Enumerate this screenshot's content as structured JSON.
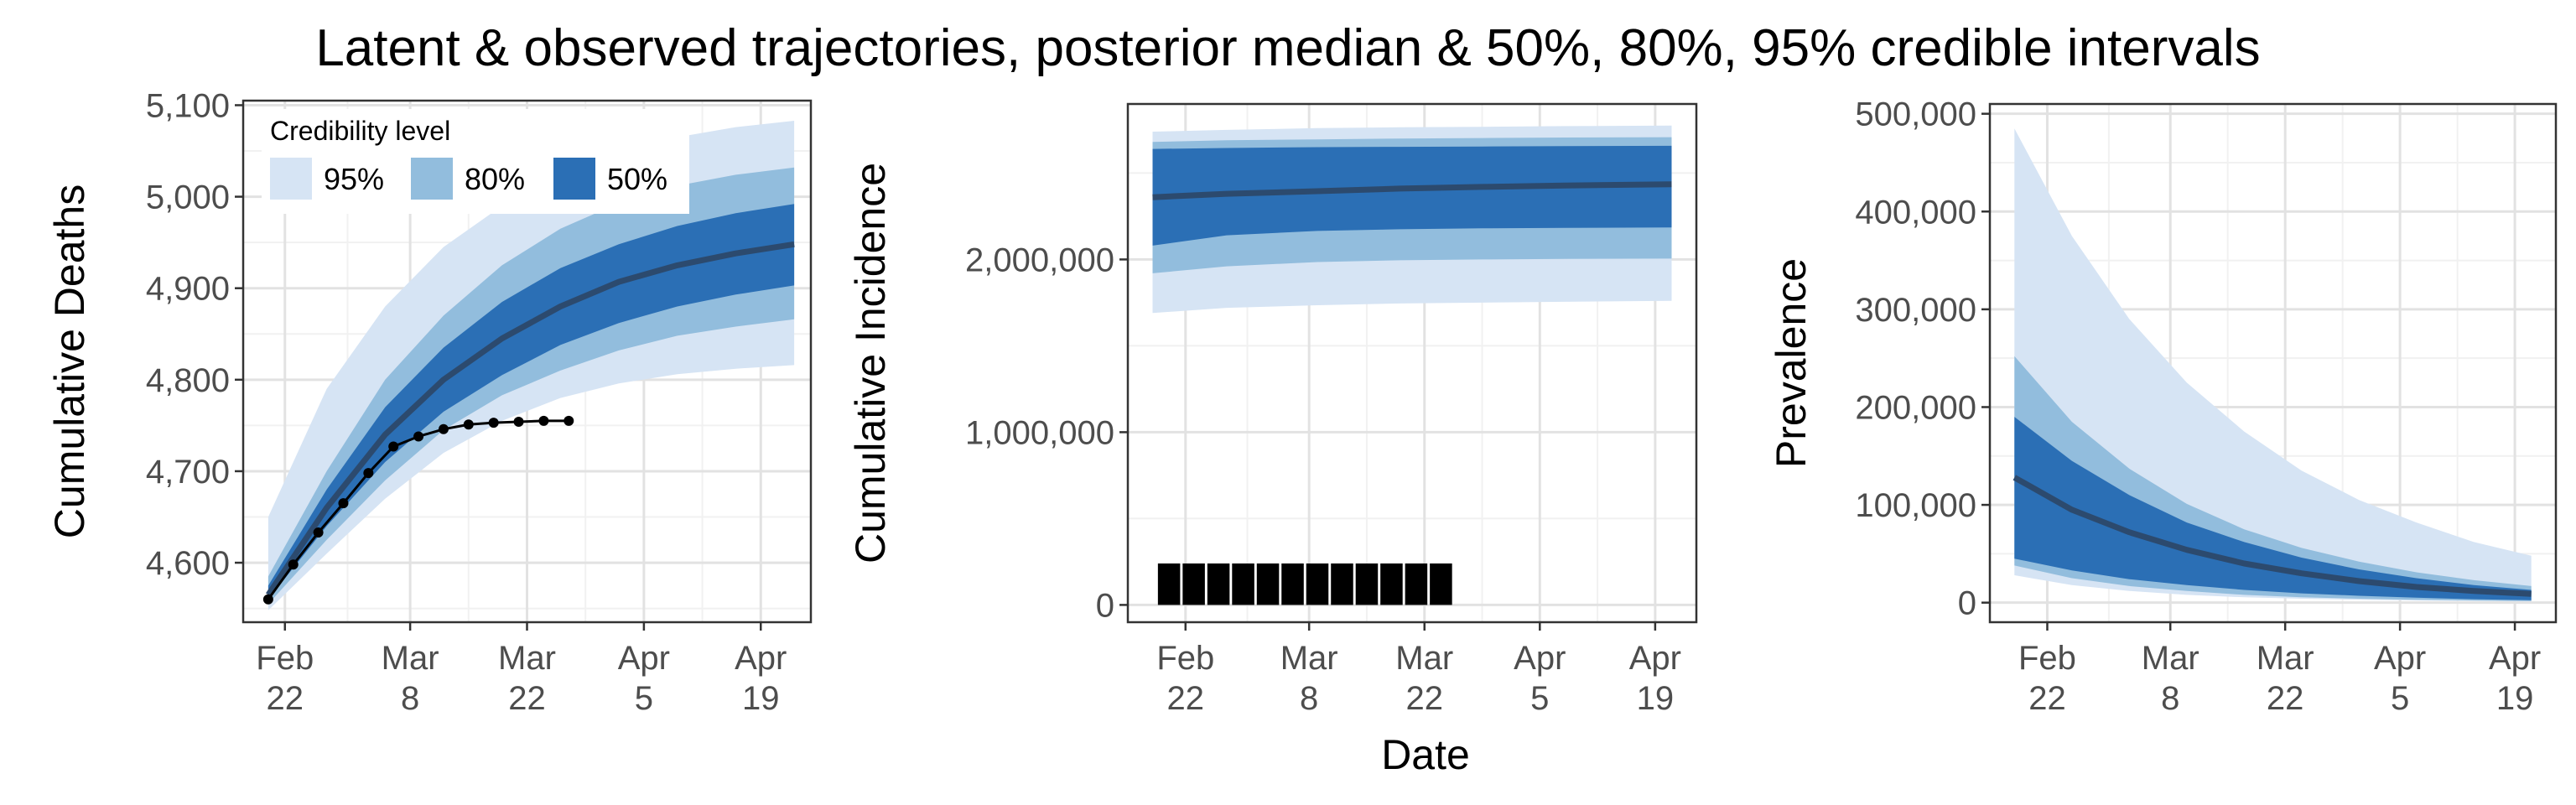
{
  "title": "Latent & observed trajectories, posterior median & 50%, 80%, 95% credible intervals",
  "x_axis_title": "Date",
  "colors": {
    "band95": "#d6e4f4",
    "band80": "#92bddd",
    "band50": "#2b6fb5",
    "median": "#2c4a6e",
    "observed": "#000000",
    "grid_major": "#e2e2e2",
    "grid_minor": "#f1f1f1",
    "panel_border": "#333333"
  },
  "legend": {
    "title": "Credibility level",
    "entries": [
      {
        "label": "95%",
        "color": "#d6e4f4"
      },
      {
        "label": "80%",
        "color": "#92bddd"
      },
      {
        "label": "50%",
        "color": "#2b6fb5"
      }
    ]
  },
  "chart_data": [
    {
      "type": "area",
      "ylabel": "Cumulative Deaths",
      "xlim": [
        "2020-02-17",
        "2020-04-25"
      ],
      "ylim": [
        4535,
        5105
      ],
      "x_ticks": [
        "2020-02-22",
        "2020-03-08",
        "2020-03-22",
        "2020-04-05",
        "2020-04-19"
      ],
      "x_tick_labels": [
        [
          "Feb",
          "22"
        ],
        [
          "Mar",
          "8"
        ],
        [
          "Mar",
          "22"
        ],
        [
          "Apr",
          "5"
        ],
        [
          "Apr",
          "19"
        ]
      ],
      "y_ticks": [
        4600,
        4700,
        4800,
        4900,
        5000,
        5100
      ],
      "y_tick_labels": [
        "4,600",
        "4,700",
        "4,800",
        "4,900",
        "5,000",
        "5,100"
      ],
      "bands": {
        "x": [
          "2020-02-20",
          "2020-02-27",
          "2020-03-05",
          "2020-03-12",
          "2020-03-19",
          "2020-03-26",
          "2020-04-02",
          "2020-04-09",
          "2020-04-16",
          "2020-04-23"
        ],
        "median": [
          4565,
          4660,
          4740,
          4800,
          4845,
          4880,
          4907,
          4925,
          4938,
          4948
        ],
        "lo50": [
          4560,
          4640,
          4710,
          4765,
          4805,
          4838,
          4862,
          4880,
          4893,
          4903
        ],
        "hi50": [
          4575,
          4680,
          4770,
          4835,
          4885,
          4922,
          4948,
          4968,
          4982,
          4992
        ],
        "lo80": [
          4555,
          4625,
          4690,
          4745,
          4783,
          4810,
          4832,
          4848,
          4858,
          4866
        ],
        "hi80": [
          4585,
          4700,
          4800,
          4870,
          4925,
          4965,
          4993,
          5012,
          5024,
          5032
        ],
        "lo95": [
          4548,
          4610,
          4670,
          4720,
          4755,
          4780,
          4796,
          4806,
          4812,
          4816
        ],
        "hi95": [
          4650,
          4790,
          4880,
          4945,
          4990,
          5025,
          5048,
          5065,
          5076,
          5083
        ]
      },
      "observed": {
        "x": [
          "2020-02-20",
          "2020-02-23",
          "2020-02-26",
          "2020-02-29",
          "2020-03-03",
          "2020-03-06",
          "2020-03-09",
          "2020-03-12",
          "2020-03-15",
          "2020-03-18",
          "2020-03-21",
          "2020-03-24",
          "2020-03-27"
        ],
        "y": [
          4560,
          4598,
          4633,
          4665,
          4698,
          4727,
          4738,
          4746,
          4751,
          4753,
          4754,
          4755,
          4755
        ]
      },
      "has_legend": true
    },
    {
      "type": "area",
      "ylabel": "Cumulative Incidence",
      "xlim": [
        "2020-02-15",
        "2020-04-24"
      ],
      "ylim": [
        -100000,
        2900000
      ],
      "x_ticks": [
        "2020-02-22",
        "2020-03-08",
        "2020-03-22",
        "2020-04-05",
        "2020-04-19"
      ],
      "x_tick_labels": [
        [
          "Feb",
          "22"
        ],
        [
          "Mar",
          "8"
        ],
        [
          "Mar",
          "22"
        ],
        [
          "Apr",
          "5"
        ],
        [
          "Apr",
          "19"
        ]
      ],
      "y_ticks": [
        0,
        1000000,
        2000000
      ],
      "y_tick_labels": [
        "0",
        "1,000,000",
        "2,000,000"
      ],
      "bands": {
        "x": [
          "2020-02-18",
          "2020-02-27",
          "2020-03-09",
          "2020-03-19",
          "2020-03-29",
          "2020-04-08",
          "2020-04-21"
        ],
        "median": [
          2360000,
          2380000,
          2395000,
          2410000,
          2420000,
          2428000,
          2435000
        ],
        "lo50": [
          2080000,
          2140000,
          2165000,
          2175000,
          2180000,
          2183000,
          2185000
        ],
        "hi50": [
          2640000,
          2645000,
          2650000,
          2652000,
          2654000,
          2656000,
          2658000
        ],
        "lo80": [
          1920000,
          1960000,
          1985000,
          1995000,
          2000000,
          2003000,
          2005000
        ],
        "hi80": [
          2680000,
          2690000,
          2695000,
          2700000,
          2703000,
          2706000,
          2708000
        ],
        "lo95": [
          1690000,
          1720000,
          1735000,
          1745000,
          1750000,
          1755000,
          1760000
        ],
        "hi95": [
          2740000,
          2750000,
          2760000,
          2765000,
          2768000,
          2772000,
          2775000
        ]
      },
      "observed_bars": {
        "x": [
          "2020-02-20",
          "2020-02-23",
          "2020-02-26",
          "2020-02-29",
          "2020-03-03",
          "2020-03-06",
          "2020-03-09",
          "2020-03-12",
          "2020-03-15",
          "2020-03-18",
          "2020-03-21",
          "2020-03-24"
        ],
        "y": [
          240000,
          240000,
          240000,
          240000,
          240000,
          240000,
          240000,
          240000,
          240000,
          240000,
          240000,
          240000
        ]
      },
      "has_legend": false
    },
    {
      "type": "area",
      "ylabel": "Prevalence",
      "xlim": [
        "2020-02-15",
        "2020-04-24"
      ],
      "ylim": [
        -20000,
        510000
      ],
      "x_ticks": [
        "2020-02-22",
        "2020-03-08",
        "2020-03-22",
        "2020-04-05",
        "2020-04-19"
      ],
      "x_tick_labels": [
        [
          "Feb",
          "22"
        ],
        [
          "Mar",
          "8"
        ],
        [
          "Mar",
          "22"
        ],
        [
          "Apr",
          "5"
        ],
        [
          "Apr",
          "19"
        ]
      ],
      "y_ticks": [
        0,
        100000,
        200000,
        300000,
        400000,
        500000
      ],
      "y_tick_labels": [
        "0",
        "100,000",
        "200,000",
        "300,000",
        "400,000",
        "500,000"
      ],
      "bands": {
        "x": [
          "2020-02-18",
          "2020-02-25",
          "2020-03-03",
          "2020-03-10",
          "2020-03-17",
          "2020-03-24",
          "2020-03-31",
          "2020-04-07",
          "2020-04-14",
          "2020-04-21"
        ],
        "median": [
          128000,
          95000,
          72000,
          54000,
          40000,
          30000,
          22000,
          16000,
          12000,
          9000
        ],
        "lo50": [
          45000,
          33000,
          24000,
          18000,
          13000,
          9500,
          7000,
          5000,
          3500,
          2500
        ],
        "hi50": [
          190000,
          145000,
          110000,
          82000,
          62000,
          46000,
          34000,
          25000,
          18000,
          13000
        ],
        "lo80": [
          38000,
          25000,
          17000,
          12000,
          8000,
          5500,
          4000,
          3000,
          2200,
          1600
        ],
        "hi80": [
          252000,
          185000,
          137000,
          101000,
          75000,
          56000,
          42000,
          31000,
          23000,
          17000
        ],
        "lo95": [
          28000,
          18000,
          12000,
          8000,
          5500,
          4000,
          3000,
          2200,
          1600,
          1200
        ],
        "hi95": [
          485000,
          375000,
          290000,
          225000,
          175000,
          135000,
          105000,
          82000,
          62000,
          48000
        ]
      },
      "has_legend": false
    }
  ]
}
